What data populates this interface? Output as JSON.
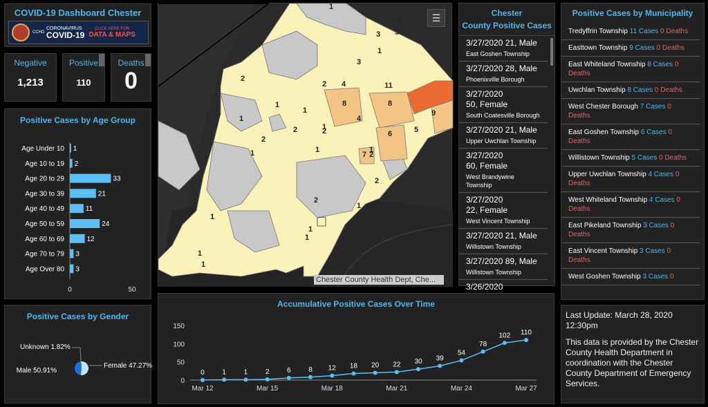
{
  "header": {
    "title": "COVID-19 Dashboard Chester",
    "banner": {
      "org": "CCHD",
      "line1": "CORONAVIRUS",
      "line2": "COVID-19",
      "cta1": "CLICK HERE FOR",
      "cta2": "DATA & MAPS"
    }
  },
  "indicators": [
    {
      "label": "Negative",
      "value": "1,213"
    },
    {
      "label": "Positive",
      "value": "110"
    },
    {
      "label": "Deaths",
      "value": "0"
    }
  ],
  "age_panel": {
    "title": "Positive Cases by Age Group"
  },
  "gender_panel": {
    "title": "Positive Cases by Gender"
  },
  "timeline_panel": {
    "title": "Accumulative Positive Cases Over Time"
  },
  "map": {
    "attribution": "Chester County Health Dept, Che...",
    "list_icon": "list-icon",
    "region_labels": [
      "1",
      "3",
      "1",
      "3",
      "2",
      "2",
      "4",
      "3",
      "2",
      "11",
      "8",
      "8",
      "9",
      "1",
      "1",
      "1",
      "4",
      "5",
      "1",
      "2",
      "2",
      "6",
      "7",
      "1",
      "1",
      "2",
      "1",
      "2",
      "2",
      "2",
      "1",
      "1",
      "1",
      "1",
      "1",
      "1"
    ]
  },
  "cases": {
    "title_line1": "Chester",
    "title_line2": "County Positive Cases",
    "items": [
      {
        "date": "3/27/2020",
        "detail": "21, Male",
        "place": "East Goshen Township"
      },
      {
        "date": "3/27/2020",
        "detail": "28, Male",
        "place": "Phoenixville Borough"
      },
      {
        "date": "3/27/2020",
        "detail": "50, Female",
        "place": "South Coatesville Borough"
      },
      {
        "date": "3/27/2020",
        "detail": "21, Male",
        "place": "Upper Uwchlan Township"
      },
      {
        "date": "3/27/2020",
        "detail": "60, Female",
        "place": "West Brandywine Township"
      },
      {
        "date": "3/27/2020",
        "detail": "22, Female",
        "place": "West Vincent Township"
      },
      {
        "date": "3/27/2020",
        "detail": "21, Male",
        "place": "Willistown Township"
      },
      {
        "date": "3/27/2020",
        "detail": "89, Male",
        "place": "Willistown Township"
      },
      {
        "date": "3/26/2020",
        "detail": "",
        "place": ""
      }
    ]
  },
  "municipalities": {
    "title": "Positive Cases by Municipality",
    "items": [
      {
        "name": "Tredyffrin Township",
        "cases": "11 Cases",
        "deaths": "0 Deaths"
      },
      {
        "name": "Easttown Township",
        "cases": "9 Cases",
        "deaths": "0 Deaths"
      },
      {
        "name": "East Whiteland Township",
        "cases": "8 Cases",
        "deaths": "0 Deaths"
      },
      {
        "name": "Uwchlan Township",
        "cases": "8 Cases",
        "deaths": "0 Deaths"
      },
      {
        "name": "West Chester Borough",
        "cases": "7 Cases",
        "deaths": "0 Deaths"
      },
      {
        "name": "East Goshen Township",
        "cases": "6 Cases",
        "deaths": "0 Deaths"
      },
      {
        "name": "Willistown Township",
        "cases": "5 Cases",
        "deaths": "0 Deaths"
      },
      {
        "name": "Upper Uwchlan Township",
        "cases": "4 Cases",
        "deaths": "0 Deaths"
      },
      {
        "name": "West Whiteland Township",
        "cases": "4 Cases",
        "deaths": "0 Deaths"
      },
      {
        "name": "East Pikeland Township",
        "cases": "3 Cases",
        "deaths": "0 Deaths"
      },
      {
        "name": "East Vincent Township",
        "cases": "3 Cases",
        "deaths": "0 Deaths"
      },
      {
        "name": "West Goshen Township",
        "cases": "3 Cases",
        "deaths": "0"
      }
    ]
  },
  "update": {
    "last_update": "Last Update: March 28, 2020 12:30pm",
    "note": "This data is provided by the Chester County Health Department in coordination with the Chester County Department of Emergency Services."
  },
  "colors": {
    "accent": "#4fb6ec",
    "bar": "#5bc0f8",
    "deaths": "#e0655a",
    "map_low": "#faf2b8",
    "map_mid": "#f2c584",
    "map_high": "#ea6a30",
    "map_none": "#c8c8c8"
  },
  "chart_data": [
    {
      "type": "bar",
      "orientation": "horizontal",
      "title": "Positive Cases by Age Group",
      "categories": [
        "Age Under 10",
        "Age 10 to 19",
        "Age 20 to 29",
        "Age 30 to 39",
        "Age 40 to 49",
        "Age 50 to 59",
        "Age 60 to 69",
        "Age 70 to 79",
        "Age Over 80"
      ],
      "values": [
        1,
        2,
        33,
        21,
        11,
        24,
        12,
        3,
        3
      ],
      "xlim": [
        0,
        50
      ],
      "xticks": [
        "0",
        "50"
      ]
    },
    {
      "type": "pie",
      "title": "Positive Cases by Gender",
      "slices": [
        {
          "label": "Male 50.91%",
          "value": 50.91
        },
        {
          "label": "Female 47.27%",
          "value": 47.27
        },
        {
          "label": "Unknown 1.82%",
          "value": 1.82
        }
      ]
    },
    {
      "type": "line",
      "title": "Accumulative Positive Cases Over Time",
      "x": [
        "Mar 12",
        "Mar 13",
        "Mar 14",
        "Mar 15",
        "Mar 16",
        "Mar 17",
        "Mar 18",
        "Mar 19",
        "Mar 20",
        "Mar 21",
        "Mar 22",
        "Mar 23",
        "Mar 24",
        "Mar 25",
        "Mar 26",
        "Mar 27"
      ],
      "values": [
        0,
        1,
        1,
        2,
        6,
        8,
        12,
        18,
        20,
        22,
        30,
        39,
        54,
        78,
        102,
        110
      ],
      "xticks": [
        "Mar 12",
        "Mar 15",
        "Mar 18",
        "Mar 21",
        "Mar 24",
        "Mar 27"
      ],
      "yticks": [
        "0",
        "50",
        "100",
        "150"
      ],
      "ylim": [
        0,
        150
      ]
    }
  ]
}
